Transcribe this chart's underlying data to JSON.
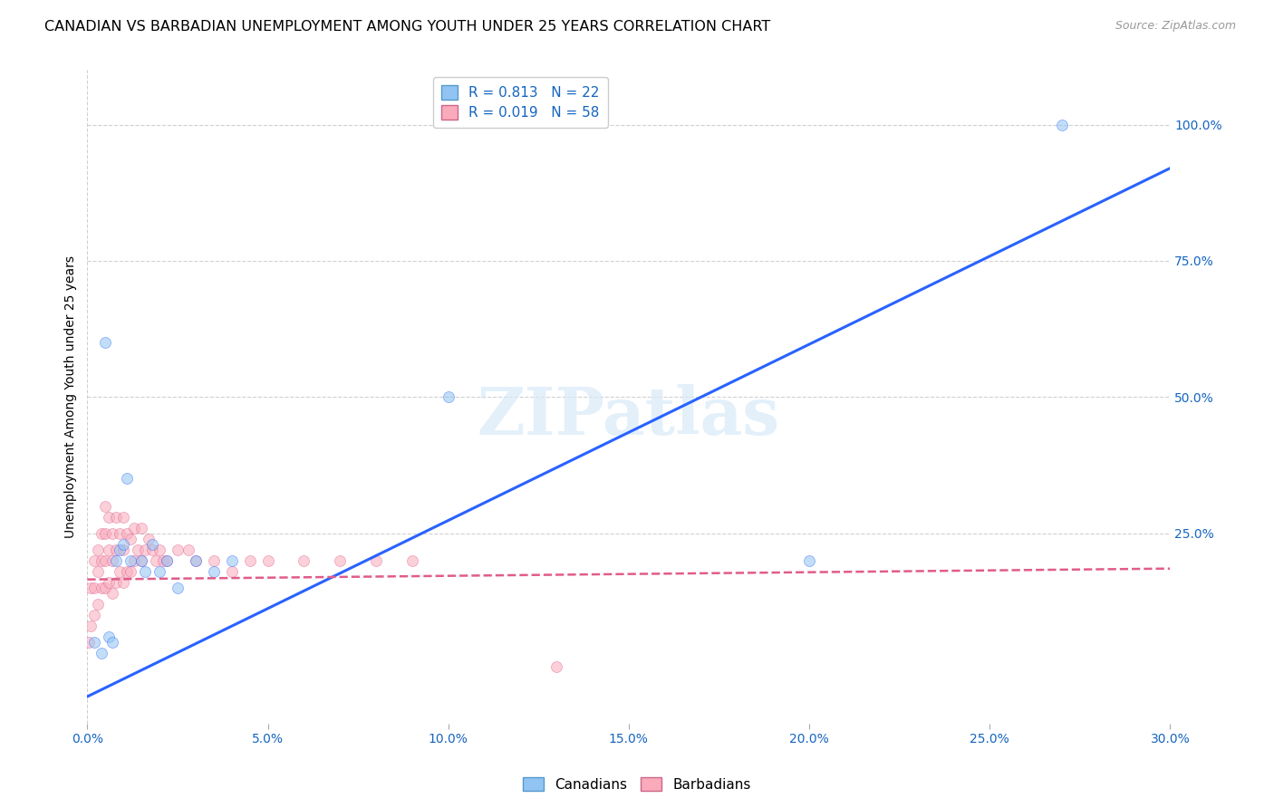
{
  "title": "CANADIAN VS BARBADIAN UNEMPLOYMENT AMONG YOUTH UNDER 25 YEARS CORRELATION CHART",
  "source": "Source: ZipAtlas.com",
  "xlabel_ticks": [
    "0.0%",
    "5.0%",
    "10.0%",
    "15.0%",
    "20.0%",
    "25.0%",
    "30.0%"
  ],
  "xlabel_values": [
    0.0,
    5.0,
    10.0,
    15.0,
    20.0,
    25.0,
    30.0
  ],
  "ylabel_ticks": [
    "100.0%",
    "75.0%",
    "50.0%",
    "25.0%"
  ],
  "ylabel_values": [
    100.0,
    75.0,
    50.0,
    25.0
  ],
  "ylabel_label": "Unemployment Among Youth under 25 years",
  "canadian_color": "#91C4F2",
  "barbadian_color": "#F9AABB",
  "canadian_line_color": "#2962FF",
  "barbadian_line_color": "#E05C8A",
  "background_color": "#ffffff",
  "grid_color": "#d0d0d0",
  "canadian_R": 0.813,
  "canadian_N": 22,
  "barbadian_R": 0.019,
  "barbadian_N": 58,
  "canadian_x": [
    0.2,
    0.4,
    0.5,
    0.6,
    0.7,
    0.8,
    0.9,
    1.0,
    1.1,
    1.2,
    1.5,
    1.6,
    1.8,
    2.0,
    2.2,
    2.5,
    3.0,
    3.5,
    4.0,
    10.0,
    20.0,
    27.0
  ],
  "canadian_y": [
    5.0,
    3.0,
    60.0,
    6.0,
    5.0,
    20.0,
    22.0,
    23.0,
    35.0,
    20.0,
    20.0,
    18.0,
    23.0,
    18.0,
    20.0,
    15.0,
    20.0,
    18.0,
    20.0,
    50.0,
    20.0,
    100.0
  ],
  "barbadian_x": [
    0.05,
    0.1,
    0.1,
    0.2,
    0.2,
    0.2,
    0.3,
    0.3,
    0.3,
    0.4,
    0.4,
    0.4,
    0.5,
    0.5,
    0.5,
    0.5,
    0.6,
    0.6,
    0.6,
    0.7,
    0.7,
    0.7,
    0.8,
    0.8,
    0.8,
    0.9,
    0.9,
    1.0,
    1.0,
    1.0,
    1.1,
    1.1,
    1.2,
    1.2,
    1.3,
    1.3,
    1.4,
    1.5,
    1.5,
    1.6,
    1.7,
    1.8,
    1.9,
    2.0,
    2.1,
    2.2,
    2.5,
    2.8,
    3.0,
    3.5,
    4.0,
    4.5,
    5.0,
    6.0,
    7.0,
    8.0,
    9.0,
    13.0
  ],
  "barbadian_y": [
    5.0,
    15.0,
    8.0,
    20.0,
    15.0,
    10.0,
    22.0,
    18.0,
    12.0,
    25.0,
    20.0,
    15.0,
    30.0,
    25.0,
    20.0,
    15.0,
    28.0,
    22.0,
    16.0,
    25.0,
    20.0,
    14.0,
    28.0,
    22.0,
    16.0,
    25.0,
    18.0,
    28.0,
    22.0,
    16.0,
    25.0,
    18.0,
    24.0,
    18.0,
    26.0,
    20.0,
    22.0,
    26.0,
    20.0,
    22.0,
    24.0,
    22.0,
    20.0,
    22.0,
    20.0,
    20.0,
    22.0,
    22.0,
    20.0,
    20.0,
    18.0,
    20.0,
    20.0,
    20.0,
    20.0,
    20.0,
    20.0,
    0.5
  ],
  "xlim": [
    0.0,
    30.0
  ],
  "ylim": [
    -10.0,
    110.0
  ],
  "can_trend_x0": 0.0,
  "can_trend_y0": -5.0,
  "can_trend_x1": 30.0,
  "can_trend_y1": 92.0,
  "bar_trend_x0": 0.0,
  "bar_trend_y0": 16.5,
  "bar_trend_x1": 30.0,
  "bar_trend_y1": 18.5,
  "marker_size": 75,
  "marker_alpha": 0.55,
  "title_fontsize": 11.5,
  "axis_label_fontsize": 10,
  "tick_fontsize": 10,
  "legend_fontsize": 11
}
